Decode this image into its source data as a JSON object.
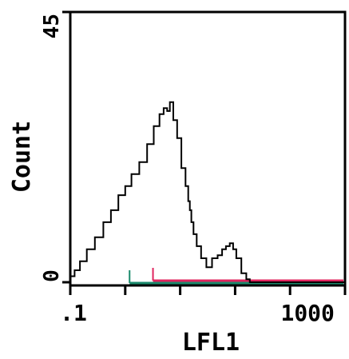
{
  "chart_data": {
    "type": "line",
    "title": "",
    "xlabel": "LFL1",
    "ylabel": "Count",
    "xscale": "log",
    "xlim": [
      0.1,
      10000
    ],
    "ylim": [
      0,
      45
    ],
    "x_tick_labels": [
      ".1",
      "1000"
    ],
    "y_tick_labels": [
      "0",
      "45"
    ],
    "grid": false,
    "series": [
      {
        "x": [
          0.1,
          0.12,
          0.15,
          0.2,
          0.28,
          0.4,
          0.55,
          0.75,
          1.0,
          1.3,
          1.8,
          2.5,
          3.3,
          4.2,
          5.0,
          5.8,
          6.5,
          7.5,
          8.8,
          10.5,
          12.5,
          14.0,
          15.0,
          16.0,
          17.5,
          20.0,
          24.0,
          30.0,
          38.0,
          48.0,
          58.0,
          68.0,
          80.0,
          92.0,
          105.0,
          130.0,
          160.0,
          185.0,
          200.0,
          230.0,
          10000.0
        ],
        "y": [
          1.0,
          2.0,
          3.5,
          5.5,
          7.5,
          10.0,
          12.0,
          14.5,
          16.0,
          18.0,
          20.0,
          23.0,
          26.0,
          28.0,
          29.0,
          28.5,
          30.0,
          27.0,
          24.0,
          19.0,
          16.0,
          13.5,
          12.0,
          10.0,
          8.0,
          6.0,
          4.0,
          2.5,
          4.0,
          4.5,
          5.5,
          6.0,
          6.5,
          5.5,
          4.0,
          1.5,
          0.5,
          0.0,
          0.0,
          0.0,
          0.0
        ]
      }
    ],
    "gates": [
      {
        "color": "#e0245e",
        "x_start": 3.2,
        "x_end": 10000
      },
      {
        "color": "#1a8a6c",
        "x_start": 1.2,
        "x_end": 10000
      }
    ]
  }
}
